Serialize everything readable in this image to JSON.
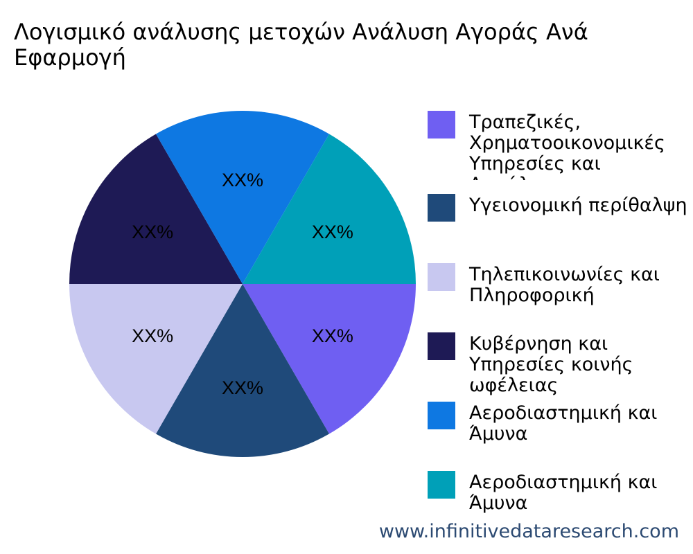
{
  "title": "Λογισμικό ανάλυσης μετοχών Ανάλυση Αγοράς Ανά Εφαρμογή",
  "watermark": "www.infinitivedataresearch.com",
  "chart_data": {
    "type": "pie",
    "title": "Λογισμικό ανάλυσης μετοχών Ανάλυση Αγοράς Ανά Εφαρμογή",
    "start_angle": "east, clockwise",
    "slices": [
      {
        "name": "Τραπεζικές, Χρηματοοικονομικές Υπηρεσίες και Ασφάλειες",
        "value": 16.67,
        "label": "XX%",
        "color": "#6f5ff2"
      },
      {
        "name": "Υγειονομική περίθαλψη",
        "value": 16.67,
        "label": "XX%",
        "color": "#1f4a7a"
      },
      {
        "name": "Τηλεπικοινωνίες και Πληροφορική",
        "value": 16.67,
        "label": "XX%",
        "color": "#c8c8f0"
      },
      {
        "name": "Κυβέρνηση και Υπηρεσίες κοινής ωφέλειας",
        "value": 16.67,
        "label": "XX%",
        "color": "#1e1a55"
      },
      {
        "name": "Αεροδιαστημική και Άμυνα",
        "value": 16.67,
        "label": "XX%",
        "color": "#0e78e2"
      },
      {
        "name": "Αεροδιαστημική και Άμυνα",
        "value": 16.67,
        "label": "XX%",
        "color": "#00a0b8"
      }
    ],
    "legend_position": "right"
  }
}
